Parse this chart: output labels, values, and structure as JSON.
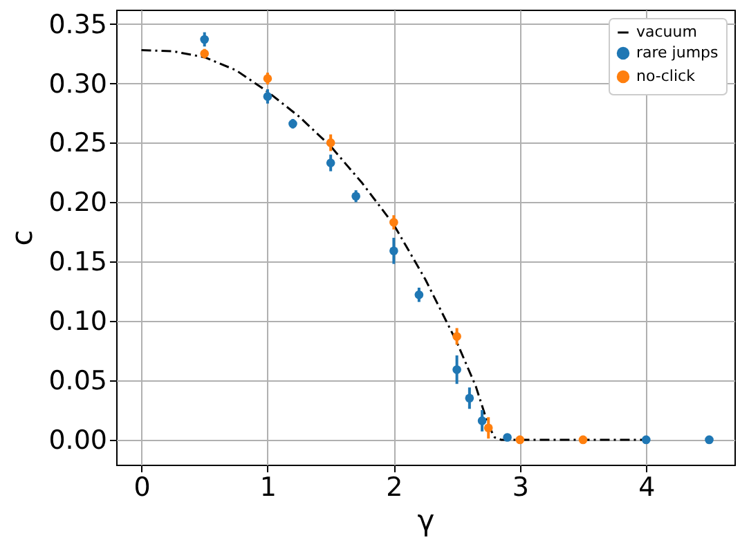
{
  "chart_data": {
    "type": "scatter",
    "xlabel": "γ",
    "ylabel": "c",
    "xlim": [
      -0.2,
      4.7
    ],
    "xticks": [
      0,
      1,
      2,
      3,
      4
    ],
    "ylim": [
      -0.021,
      0.362
    ],
    "yticks": [
      {
        "value": 0,
        "label": "0.00"
      },
      {
        "value": 0.05,
        "label": "0.05"
      },
      {
        "value": 0.1,
        "label": "0.10"
      },
      {
        "value": 0.15,
        "label": "0.15"
      },
      {
        "value": 0.2,
        "label": "0.20"
      },
      {
        "value": 0.25,
        "label": "0.25"
      },
      {
        "value": 0.3,
        "label": "0.30"
      },
      {
        "value": 0.35,
        "label": "0.35"
      }
    ],
    "grid": true,
    "legend": "top right",
    "marker": "circle",
    "series": [
      {
        "name": "vacuum",
        "type": "line",
        "marker": "none",
        "line_style": "dashdot",
        "color": "#000000",
        "x": [
          0,
          0.25,
          0.5,
          0.75,
          1,
          1.25,
          1.5,
          1.75,
          2,
          2.25,
          2.5,
          2.65,
          2.75,
          2.8,
          2.85,
          3,
          3.5,
          4
        ],
        "values": [
          0.328,
          0.327,
          0.322,
          0.311,
          0.293,
          0.272,
          0.247,
          0.216,
          0.181,
          0.135,
          0.082,
          0.045,
          0.012,
          0.002,
          0,
          0,
          0,
          0
        ]
      },
      {
        "name": "rare jumps",
        "color": "#1f77b4",
        "x": [
          0.5,
          1,
          1.2,
          1.5,
          1.7,
          2,
          2.2,
          2.5,
          2.6,
          2.7,
          2.9,
          4,
          4.5
        ],
        "values": [
          0.337,
          0.289,
          0.266,
          0.233,
          0.205,
          0.159,
          0.122,
          0.059,
          0.035,
          0.016,
          0.002,
          0,
          0
        ],
        "errors": [
          0.006,
          0.006,
          0.004,
          0.007,
          0.005,
          0.011,
          0.006,
          0.012,
          0.009,
          0.009,
          0.002,
          0.001,
          0.001
        ]
      },
      {
        "name": "no-click",
        "color": "#ff7f0e",
        "x": [
          0.5,
          1,
          1.5,
          2,
          2.5,
          2.75,
          3,
          3.5
        ],
        "values": [
          0.325,
          0.304,
          0.25,
          0.183,
          0.087,
          0.01,
          0,
          0
        ],
        "errors": [
          0.004,
          0.005,
          0.007,
          0.006,
          0.007,
          0.009,
          0.001,
          0.001
        ]
      }
    ]
  }
}
